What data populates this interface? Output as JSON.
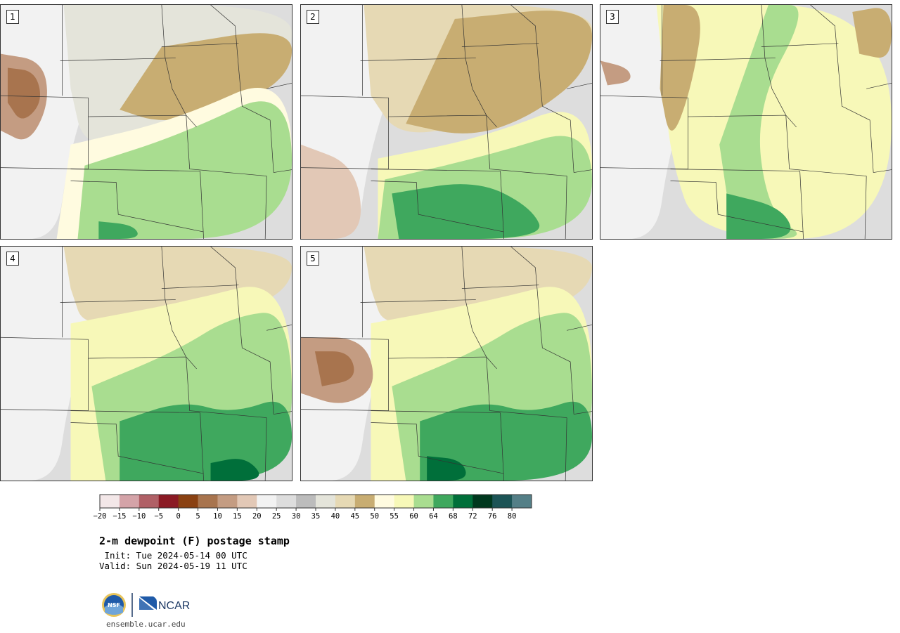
{
  "figure": {
    "title": "2-m dewpoint (F) postage stamp",
    "init_line": " Init: Tue 2024-05-14 00 UTC",
    "valid_line": "Valid: Sun 2024-05-19 11 UTC",
    "footer_url": "ensemble.ucar.edu",
    "logo_text": "NCAR",
    "nsf_text": "NSF"
  },
  "panels": [
    {
      "label": "1",
      "scheme": "dry-west-moist-east",
      "dry_extent": 0.3,
      "moist_start": 0.55,
      "dry_core": "brown-nw"
    },
    {
      "label": "2",
      "scheme": "dry-north-moist-south",
      "dry_extent": 0.45,
      "moist_start": 0.6,
      "dry_core": "none"
    },
    {
      "label": "3",
      "scheme": "moist-central",
      "dry_extent": 0.25,
      "moist_start": 0.35,
      "dry_core": "brown-w"
    },
    {
      "label": "4",
      "scheme": "moist-southeast",
      "dry_extent": 0.28,
      "moist_start": 0.45,
      "dry_core": "none"
    },
    {
      "label": "5",
      "scheme": "moist-southeast",
      "dry_extent": 0.3,
      "moist_start": 0.4,
      "dry_core": "brown-sw"
    }
  ],
  "colorbar": {
    "ticks": [
      "−20",
      "−15",
      "−10",
      "−5",
      "0",
      "5",
      "10",
      "15",
      "20",
      "25",
      "30",
      "35",
      "40",
      "45",
      "50",
      "55",
      "60",
      "64",
      "68",
      "72",
      "76",
      "80"
    ],
    "colors": [
      "#f3e7e8",
      "#d4a3a8",
      "#b06066",
      "#8b1a24",
      "#8a4112",
      "#a8744e",
      "#c49c82",
      "#e2c8b6",
      "#f2f2f2",
      "#dddddd",
      "#bcbcbc",
      "#e4e4da",
      "#e6d9b4",
      "#c8ad72",
      "#fffbe0",
      "#f7f8b8",
      "#a9dd90",
      "#3fa85e",
      "#006f3a",
      "#00381e",
      "#1c5456",
      "#547f87"
    ]
  }
}
